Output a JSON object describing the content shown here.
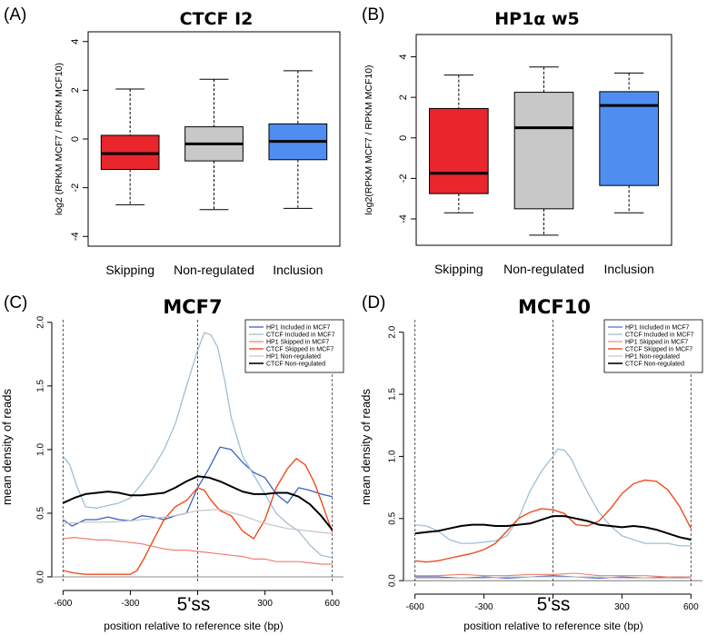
{
  "chart_data": [
    {
      "panel": "(A)",
      "type": "box",
      "title": "CTCF I2",
      "ylabel": "log2 (RPKM MCF7 / RPKM MCF10)",
      "ylim": [
        -4.4,
        4.4
      ],
      "yticks": [
        "-4",
        "-2",
        "0",
        "2",
        "4"
      ],
      "boxes": [
        {
          "label": "Skipping",
          "color": "#e8262b",
          "whislo": -2.7,
          "q1": -1.25,
          "med": -0.6,
          "q3": 0.15,
          "whishi": 2.05
        },
        {
          "label": "Non-regulated",
          "color": "#c8c8c8",
          "whislo": -2.9,
          "q1": -0.9,
          "med": -0.2,
          "q3": 0.5,
          "whishi": 2.45
        },
        {
          "label": "Inclusion",
          "color": "#4f8ef0",
          "whislo": -2.85,
          "q1": -0.85,
          "med": -0.1,
          "q3": 0.62,
          "whishi": 2.8
        }
      ]
    },
    {
      "panel": "(B)",
      "type": "box",
      "title": "HP1α w5",
      "ylabel": "log2(RPKM MCF7 / RPKM MCF10)",
      "ylim": [
        -5.3,
        5.1
      ],
      "yticks": [
        "-4",
        "-2",
        "0",
        "2",
        "4"
      ],
      "boxes": [
        {
          "label": "Skipping",
          "color": "#e8262b",
          "whislo": -3.7,
          "q1": -2.75,
          "med": -1.75,
          "q3": 1.45,
          "whishi": 3.1
        },
        {
          "label": "Non-regulated",
          "color": "#c8c8c8",
          "whislo": -4.8,
          "q1": -3.5,
          "med": 0.5,
          "q3": 2.25,
          "whishi": 3.5
        },
        {
          "label": "Inclusion",
          "color": "#4f8ef0",
          "whislo": -3.7,
          "q1": -2.35,
          "med": 1.6,
          "q3": 2.28,
          "whishi": 3.2
        }
      ]
    },
    {
      "panel": "(C)",
      "type": "line",
      "title": "MCF7",
      "ylabel": "mean density of reads",
      "xlabel": "position relative to reference site (bp)",
      "center_label": "5'ss",
      "xlim": [
        -650,
        650
      ],
      "ylim": [
        -0.05,
        2.02
      ],
      "xticks": [
        "-600",
        "-300",
        "0",
        "300",
        "600"
      ],
      "yticks": [
        "0.0",
        "0.5",
        "1.0",
        "1.5",
        "2.0"
      ],
      "vlines": [
        -600,
        0,
        600
      ],
      "series": [
        {
          "name": "HP1 Included in MCF7",
          "color": "#3a62c4",
          "width": 1.3,
          "x": [
            -600,
            -560,
            -500,
            -450,
            -400,
            -350,
            -300,
            -250,
            -200,
            -150,
            -100,
            -50,
            0,
            50,
            100,
            150,
            200,
            250,
            300,
            350,
            400,
            450,
            500,
            550,
            600
          ],
          "y": [
            0.45,
            0.4,
            0.45,
            0.45,
            0.47,
            0.45,
            0.44,
            0.48,
            0.47,
            0.45,
            0.48,
            0.5,
            0.7,
            0.85,
            1.02,
            1.0,
            0.9,
            0.82,
            0.78,
            0.65,
            0.58,
            0.7,
            0.68,
            0.65,
            0.63
          ]
        },
        {
          "name": "CTCF Included in MCF7",
          "color": "#9fbfd6",
          "width": 1.3,
          "x": [
            -600,
            -570,
            -540,
            -500,
            -450,
            -400,
            -350,
            -300,
            -250,
            -200,
            -150,
            -100,
            -50,
            0,
            30,
            60,
            90,
            120,
            150,
            200,
            250,
            300,
            350,
            400,
            450,
            500,
            550,
            600
          ],
          "y": [
            0.95,
            0.88,
            0.72,
            0.55,
            0.54,
            0.56,
            0.58,
            0.62,
            0.73,
            0.85,
            1.0,
            1.2,
            1.5,
            1.78,
            1.92,
            1.9,
            1.8,
            1.55,
            1.25,
            0.95,
            0.8,
            0.65,
            0.5,
            0.42,
            0.36,
            0.25,
            0.17,
            0.15
          ]
        },
        {
          "name": "HP1 Skipped in MCF7",
          "color": "#f08070",
          "width": 1.2,
          "x": [
            -600,
            -550,
            -500,
            -450,
            -400,
            -350,
            -300,
            -250,
            -200,
            -150,
            -100,
            -50,
            0,
            50,
            100,
            150,
            200,
            250,
            300,
            350,
            400,
            450,
            500,
            550,
            600
          ],
          "y": [
            0.3,
            0.31,
            0.3,
            0.29,
            0.29,
            0.28,
            0.27,
            0.26,
            0.24,
            0.22,
            0.21,
            0.21,
            0.2,
            0.19,
            0.18,
            0.17,
            0.16,
            0.14,
            0.14,
            0.12,
            0.12,
            0.12,
            0.11,
            0.1,
            0.1
          ]
        },
        {
          "name": "CTCF Skipped in MCF7",
          "color": "#ee4c1e",
          "width": 1.4,
          "x": [
            -600,
            -550,
            -500,
            -450,
            -400,
            -350,
            -300,
            -270,
            -240,
            -200,
            -150,
            -100,
            -50,
            0,
            30,
            60,
            100,
            150,
            200,
            250,
            300,
            350,
            400,
            440,
            480,
            520,
            560,
            600
          ],
          "y": [
            0.05,
            0.03,
            0.02,
            0.02,
            0.02,
            0.02,
            0.02,
            0.05,
            0.14,
            0.28,
            0.45,
            0.55,
            0.6,
            0.7,
            0.68,
            0.6,
            0.52,
            0.48,
            0.36,
            0.3,
            0.45,
            0.7,
            0.85,
            0.93,
            0.88,
            0.74,
            0.55,
            0.35
          ]
        },
        {
          "name": "HP1 Non-regulated",
          "color": "#c4c4c4",
          "width": 1.2,
          "x": [
            -600,
            -500,
            -400,
            -300,
            -200,
            -100,
            0,
            100,
            200,
            300,
            400,
            500,
            600
          ],
          "y": [
            0.42,
            0.43,
            0.43,
            0.44,
            0.46,
            0.48,
            0.52,
            0.53,
            0.48,
            0.42,
            0.38,
            0.36,
            0.34
          ]
        },
        {
          "name": "CTCF Non-regulated",
          "color": "#000000",
          "width": 2,
          "x": [
            -600,
            -550,
            -500,
            -450,
            -400,
            -350,
            -300,
            -250,
            -200,
            -150,
            -100,
            -50,
            0,
            50,
            100,
            150,
            200,
            250,
            300,
            350,
            400,
            450,
            500,
            550,
            600
          ],
          "y": [
            0.58,
            0.62,
            0.65,
            0.66,
            0.67,
            0.66,
            0.64,
            0.64,
            0.65,
            0.66,
            0.7,
            0.75,
            0.79,
            0.78,
            0.75,
            0.71,
            0.67,
            0.65,
            0.65,
            0.66,
            0.66,
            0.63,
            0.57,
            0.48,
            0.37
          ]
        }
      ]
    },
    {
      "panel": "(D)",
      "type": "line",
      "title": "MCF10",
      "ylabel": "mean density of reads",
      "xlabel": "position relative to reference site (bp)",
      "center_label": "5'ss",
      "xlim": [
        -650,
        650
      ],
      "ylim": [
        -0.05,
        2.1
      ],
      "xticks": [
        "-600",
        "-300",
        "0",
        "300",
        "600"
      ],
      "yticks": [
        "0.0",
        "0.5",
        "1.0",
        "1.5",
        "2.0"
      ],
      "vlines": [
        -600,
        0,
        600
      ],
      "series": [
        {
          "name": "HP1 Included in MCF7",
          "color": "#3a62c4",
          "width": 1.1,
          "x": [
            -600,
            -500,
            -400,
            -300,
            -200,
            -100,
            0,
            100,
            200,
            300,
            400,
            500,
            600
          ],
          "y": [
            0.03,
            0.03,
            0.02,
            0.03,
            0.02,
            0.03,
            0.04,
            0.03,
            0.02,
            0.03,
            0.02,
            0.03,
            0.02
          ]
        },
        {
          "name": "CTCF Included in MCF7",
          "color": "#9fbfd6",
          "width": 1.3,
          "x": [
            -600,
            -550,
            -500,
            -450,
            -400,
            -350,
            -300,
            -250,
            -200,
            -150,
            -100,
            -50,
            0,
            20,
            50,
            80,
            120,
            160,
            200,
            250,
            300,
            350,
            400,
            450,
            500,
            550,
            600
          ],
          "y": [
            0.45,
            0.44,
            0.4,
            0.33,
            0.3,
            0.3,
            0.31,
            0.32,
            0.36,
            0.5,
            0.72,
            0.88,
            1.0,
            1.06,
            1.05,
            0.98,
            0.82,
            0.68,
            0.55,
            0.44,
            0.36,
            0.33,
            0.3,
            0.3,
            0.3,
            0.28,
            0.28
          ]
        },
        {
          "name": "HP1 Skipped in MCF7",
          "color": "#f08070",
          "width": 1.1,
          "x": [
            -600,
            -500,
            -400,
            -300,
            -200,
            -100,
            0,
            100,
            200,
            300,
            400,
            500,
            600
          ],
          "y": [
            0.04,
            0.04,
            0.05,
            0.04,
            0.04,
            0.05,
            0.05,
            0.06,
            0.04,
            0.04,
            0.04,
            0.03,
            0.03
          ]
        },
        {
          "name": "CTCF Skipped in MCF7",
          "color": "#ee4c1e",
          "width": 1.4,
          "x": [
            -600,
            -550,
            -500,
            -450,
            -400,
            -350,
            -300,
            -250,
            -200,
            -150,
            -100,
            -50,
            0,
            50,
            100,
            150,
            200,
            250,
            300,
            350,
            400,
            450,
            500,
            550,
            600
          ],
          "y": [
            0.16,
            0.15,
            0.16,
            0.18,
            0.2,
            0.22,
            0.25,
            0.3,
            0.4,
            0.5,
            0.55,
            0.58,
            0.57,
            0.54,
            0.45,
            0.44,
            0.48,
            0.58,
            0.7,
            0.78,
            0.81,
            0.8,
            0.73,
            0.6,
            0.42
          ]
        },
        {
          "name": "HP1 Non-regulated",
          "color": "#c4c4c4",
          "width": 1.1,
          "x": [
            -600,
            -500,
            -400,
            -300,
            -200,
            -100,
            0,
            100,
            200,
            300,
            400,
            500,
            600
          ],
          "y": [
            0.02,
            0.02,
            0.02,
            0.02,
            0.03,
            0.03,
            0.03,
            0.03,
            0.03,
            0.02,
            0.02,
            0.02,
            0.02
          ]
        },
        {
          "name": "CTCF Non-regulated",
          "color": "#000000",
          "width": 2,
          "x": [
            -600,
            -550,
            -500,
            -450,
            -400,
            -350,
            -300,
            -250,
            -200,
            -150,
            -100,
            -50,
            0,
            50,
            100,
            150,
            200,
            250,
            300,
            350,
            400,
            450,
            500,
            550,
            600
          ],
          "y": [
            0.38,
            0.39,
            0.4,
            0.42,
            0.44,
            0.45,
            0.45,
            0.44,
            0.44,
            0.45,
            0.46,
            0.49,
            0.52,
            0.52,
            0.5,
            0.48,
            0.45,
            0.44,
            0.43,
            0.44,
            0.43,
            0.41,
            0.38,
            0.35,
            0.33
          ]
        }
      ]
    }
  ]
}
